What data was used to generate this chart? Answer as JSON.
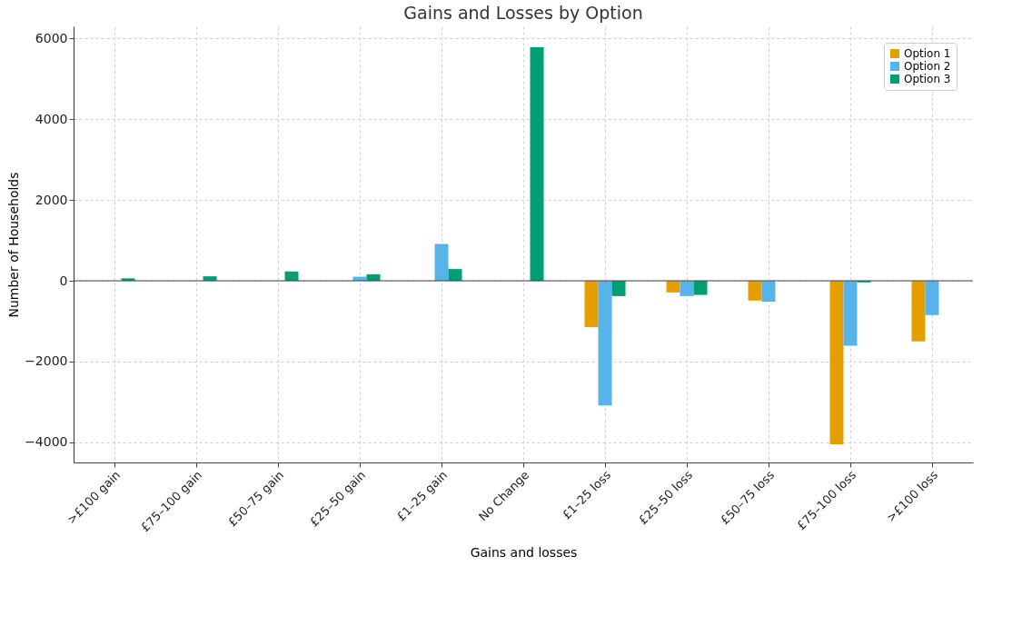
{
  "chart_data": {
    "type": "bar",
    "title": "Gains and Losses by Option",
    "xlabel": "Gains and losses",
    "ylabel": "Number of Households",
    "categories": [
      ">£100 gain",
      "£75–100 gain",
      "£50–75 gain",
      "£25–50 gain",
      "£1–25 gain",
      "No Change",
      "£1–25 loss",
      "£25–50 loss",
      "£50–75 loss",
      "£75–100 loss",
      ">£100 loss"
    ],
    "series": [
      {
        "name": "Option 1",
        "color": "#e69f00",
        "values": [
          0,
          0,
          0,
          0,
          0,
          0,
          -1150,
          -290,
          -490,
          -4050,
          -1500
        ]
      },
      {
        "name": "Option 2",
        "color": "#56b4e9",
        "values": [
          0,
          0,
          0,
          100,
          910,
          null,
          -3090,
          -380,
          -520,
          -1610,
          -850
        ]
      },
      {
        "name": "Option 3",
        "color": "#009e73",
        "values": [
          60,
          110,
          230,
          160,
          290,
          5780,
          -380,
          -350,
          null,
          -40,
          0
        ]
      }
    ],
    "ylim": [
      -4500,
      6300
    ],
    "yticks": [
      -4000,
      -2000,
      0,
      2000,
      4000,
      6000
    ],
    "ref_lines": [
      {
        "axis": "y",
        "value": 0,
        "color": "#444444"
      }
    ],
    "grid": true,
    "legend": "top right"
  }
}
